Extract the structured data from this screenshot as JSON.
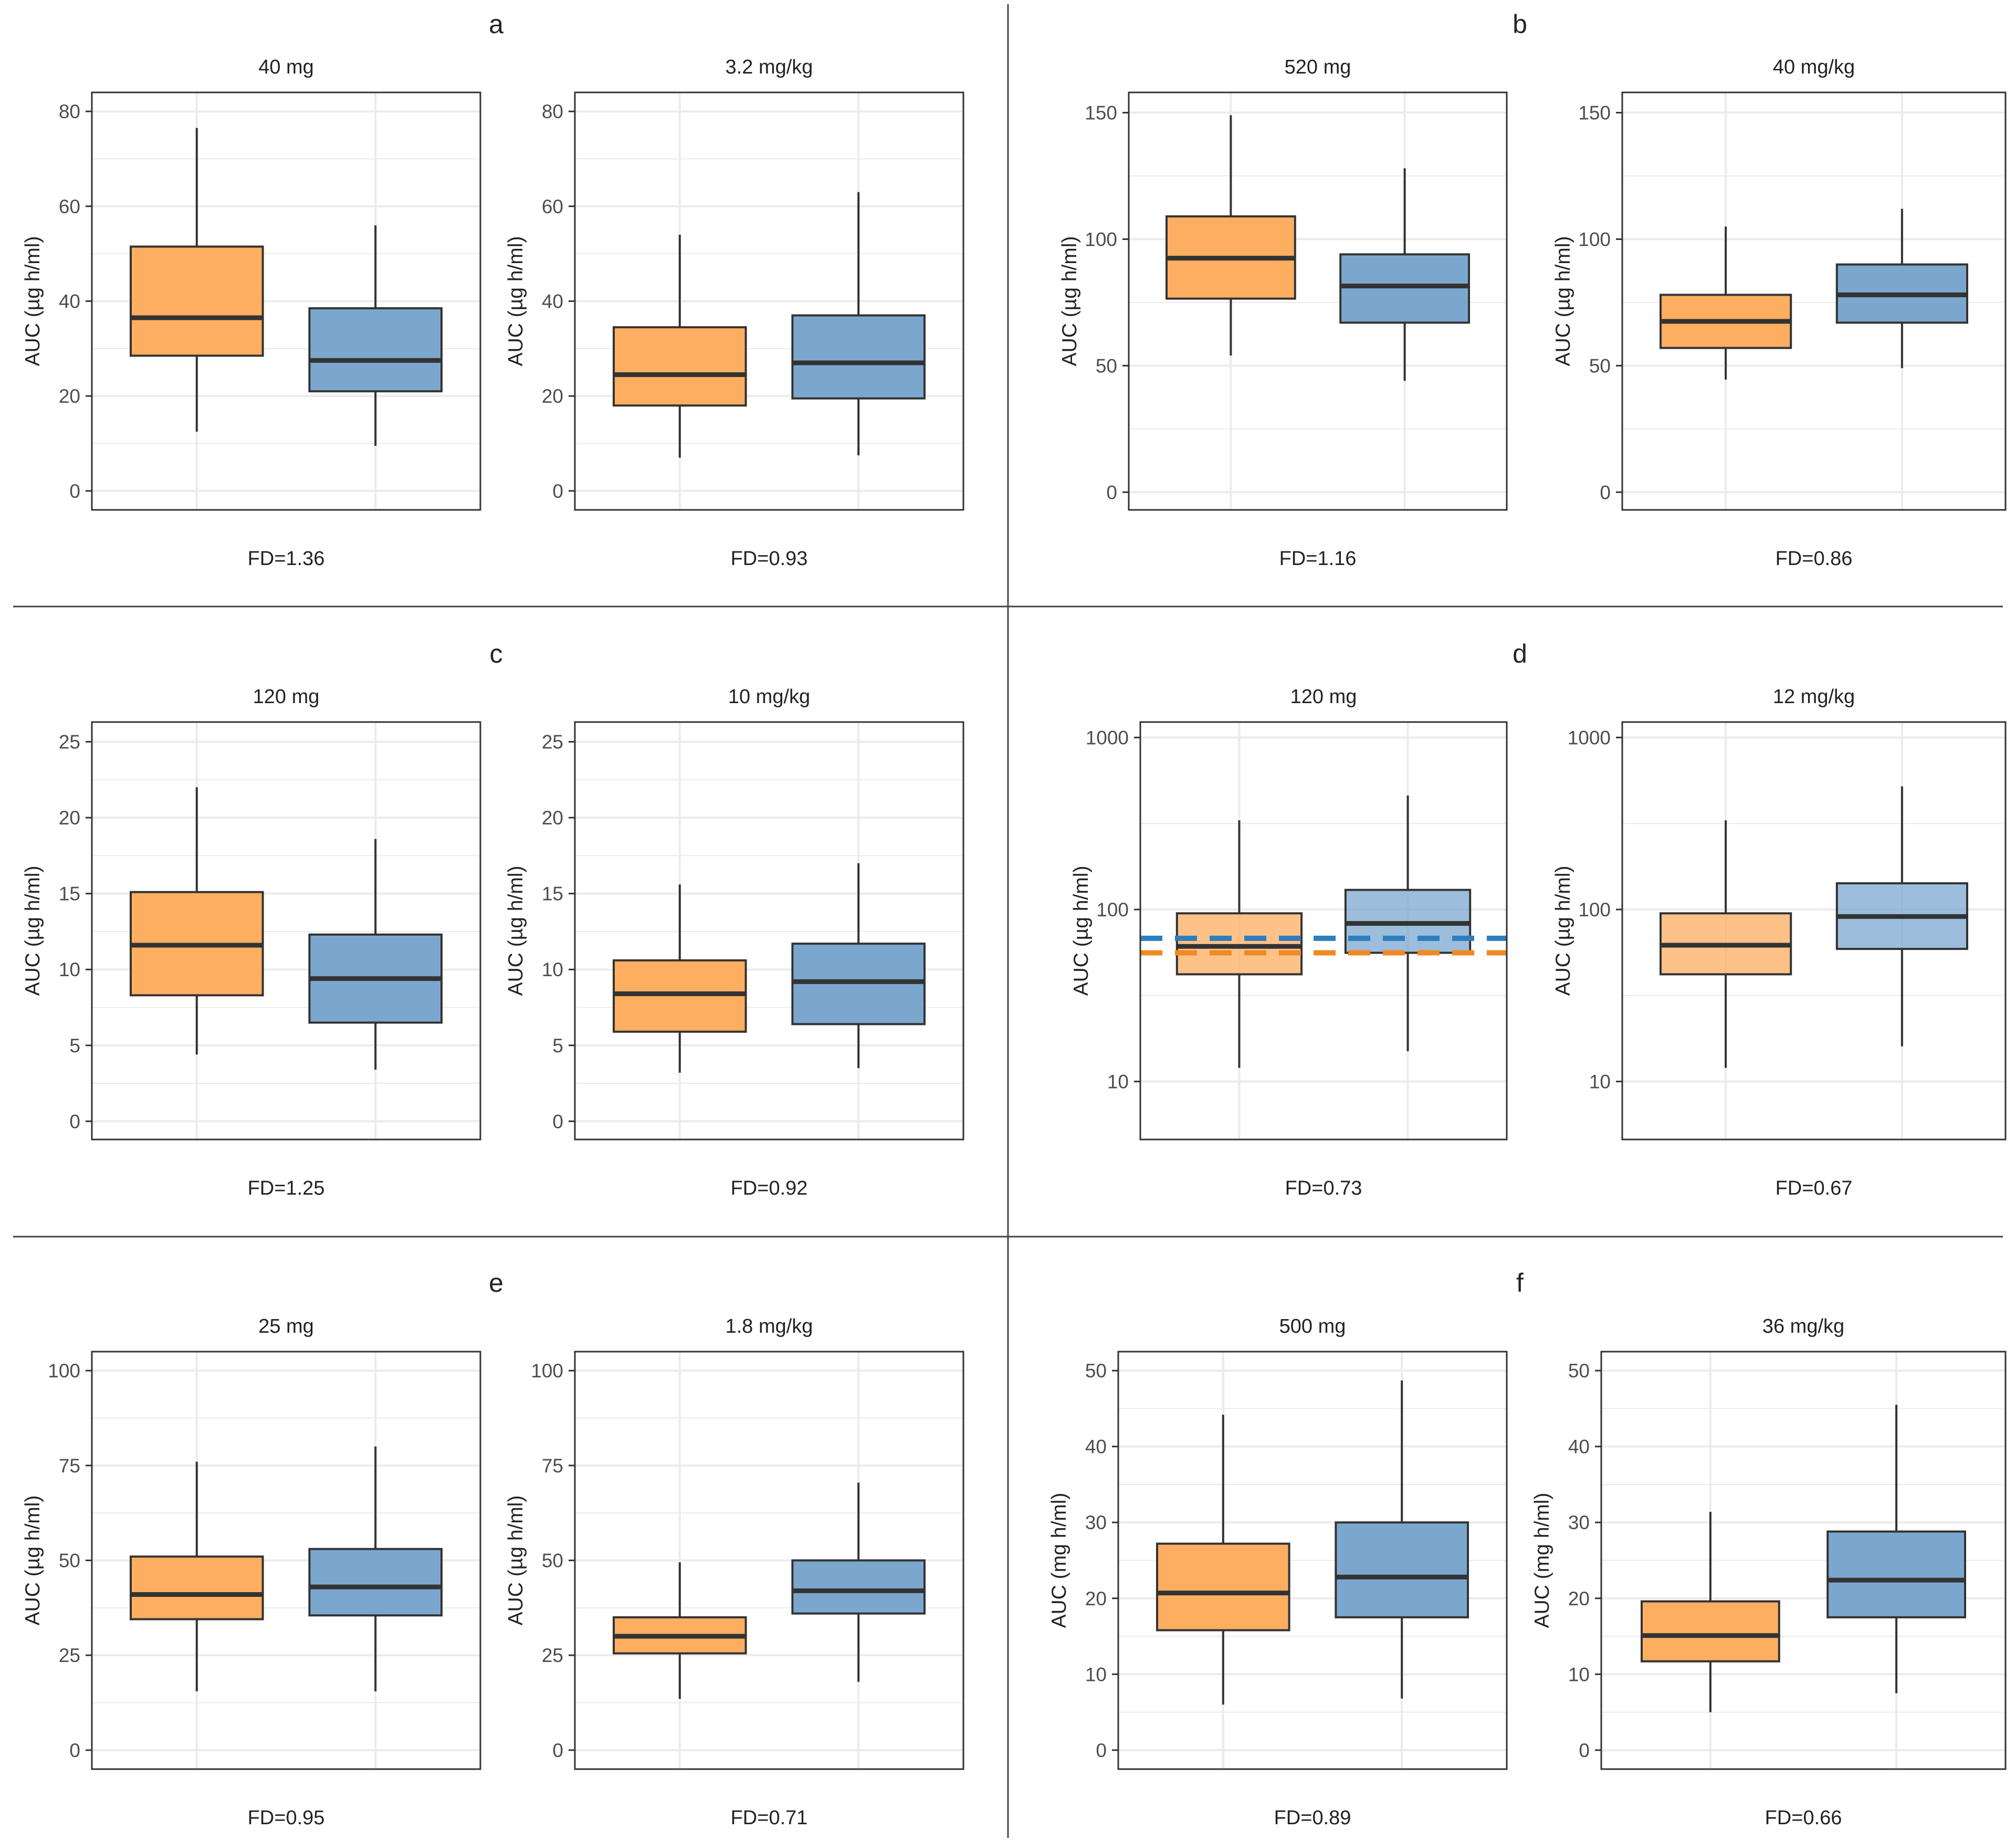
{
  "colors": {
    "group1_fill": "#fdae61",
    "group2_fill": "#7ba7cf",
    "group1_line": "#f08a24",
    "group2_line": "#2e7dbd",
    "box_stroke": "#333333",
    "grid": "#ebebeb",
    "panel_border": "#333333",
    "divider": "#444444",
    "text": "#222222",
    "tick_text": "#4d4d4d"
  },
  "chart_data": [
    {
      "type": "box",
      "panel": "a",
      "title": "40 mg",
      "ylabel": "AUC (µg h/ml)",
      "scale": "linear",
      "ylim": [
        -4,
        84
      ],
      "yticks": [
        0,
        20,
        40,
        60,
        80
      ],
      "footer": "FD=1.36",
      "boxes": [
        {
          "min": 12.5,
          "q1": 28.5,
          "median": 36.5,
          "q3": 51.5,
          "max": 76.5
        },
        {
          "min": 9.5,
          "q1": 21,
          "median": 27.5,
          "q3": 38.5,
          "max": 56
        }
      ]
    },
    {
      "type": "box",
      "panel": "a",
      "title": "3.2 mg/kg",
      "ylabel": "AUC (µg h/ml)",
      "scale": "linear",
      "ylim": [
        -4,
        84
      ],
      "yticks": [
        0,
        20,
        40,
        60,
        80
      ],
      "footer": "FD=0.93",
      "boxes": [
        {
          "min": 7,
          "q1": 18,
          "median": 24.5,
          "q3": 34.5,
          "max": 54
        },
        {
          "min": 7.5,
          "q1": 19.5,
          "median": 27,
          "q3": 37,
          "max": 63
        }
      ]
    },
    {
      "type": "box",
      "panel": "b",
      "title": "520 mg",
      "ylabel": "AUC (µg h/ml)",
      "scale": "linear",
      "ylim": [
        -7,
        158
      ],
      "yticks": [
        0,
        50,
        100,
        150
      ],
      "footer": "FD=1.16",
      "boxes": [
        {
          "min": 54,
          "q1": 76.5,
          "median": 92.5,
          "q3": 109,
          "max": 149
        },
        {
          "min": 44,
          "q1": 67,
          "median": 81.5,
          "q3": 94,
          "max": 128
        }
      ]
    },
    {
      "type": "box",
      "panel": "b",
      "title": "40 mg/kg",
      "ylabel": "AUC (µg h/ml)",
      "scale": "linear",
      "ylim": [
        -7,
        158
      ],
      "yticks": [
        0,
        50,
        100,
        150
      ],
      "footer": "FD=0.86",
      "boxes": [
        {
          "min": 44.5,
          "q1": 57,
          "median": 67.5,
          "q3": 78,
          "max": 105
        },
        {
          "min": 49,
          "q1": 67,
          "median": 78,
          "q3": 90,
          "max": 112
        }
      ]
    },
    {
      "type": "box",
      "panel": "c",
      "title": "120 mg",
      "ylabel": "AUC (µg h/ml)",
      "scale": "linear",
      "ylim": [
        -1.2,
        26.3
      ],
      "yticks": [
        0,
        5,
        10,
        15,
        20,
        25
      ],
      "footer": "FD=1.25",
      "boxes": [
        {
          "min": 4.4,
          "q1": 8.3,
          "median": 11.6,
          "q3": 15.1,
          "max": 22
        },
        {
          "min": 3.4,
          "q1": 6.5,
          "median": 9.4,
          "q3": 12.3,
          "max": 18.6
        }
      ]
    },
    {
      "type": "box",
      "panel": "c",
      "title": "10 mg/kg",
      "ylabel": "AUC (µg h/ml)",
      "scale": "linear",
      "ylim": [
        -1.2,
        26.3
      ],
      "yticks": [
        0,
        5,
        10,
        15,
        20,
        25
      ],
      "footer": "FD=0.92",
      "boxes": [
        {
          "min": 3.2,
          "q1": 5.9,
          "median": 8.4,
          "q3": 10.6,
          "max": 15.6
        },
        {
          "min": 3.5,
          "q1": 6.4,
          "median": 9.2,
          "q3": 11.7,
          "max": 17
        }
      ]
    },
    {
      "type": "box",
      "panel": "d",
      "title": "120 mg",
      "ylabel": "AUC (µg h/ml)",
      "scale": "log",
      "ylim": [
        4.6,
        1230
      ],
      "yticks": [
        10,
        100,
        1000
      ],
      "footer": "FD=0.73",
      "alpha": 0.75,
      "hlines": [
        {
          "y": 68,
          "color_key": "group2_line"
        },
        {
          "y": 56,
          "color_key": "group1_line"
        }
      ],
      "boxes": [
        {
          "min": 12,
          "q1": 42,
          "median": 61,
          "q3": 95,
          "max": 330
        },
        {
          "min": 15,
          "q1": 56,
          "median": 83,
          "q3": 130,
          "max": 460
        }
      ]
    },
    {
      "type": "box",
      "panel": "d",
      "title": "12 mg/kg",
      "ylabel": "AUC (µg h/ml)",
      "scale": "log",
      "ylim": [
        4.6,
        1230
      ],
      "yticks": [
        10,
        100,
        1000
      ],
      "footer": "FD=0.67",
      "alpha": 0.75,
      "boxes": [
        {
          "min": 12,
          "q1": 42,
          "median": 62,
          "q3": 95,
          "max": 330
        },
        {
          "min": 16,
          "q1": 59,
          "median": 91,
          "q3": 142,
          "max": 520
        }
      ]
    },
    {
      "type": "box",
      "panel": "e",
      "title": "25 mg",
      "ylabel": "AUC (µg h/ml)",
      "scale": "linear",
      "ylim": [
        -5,
        105
      ],
      "yticks": [
        0,
        25,
        50,
        75,
        100
      ],
      "footer": "FD=0.95",
      "boxes": [
        {
          "min": 15.5,
          "q1": 34.5,
          "median": 41,
          "q3": 51,
          "max": 76
        },
        {
          "min": 15.5,
          "q1": 35.5,
          "median": 43,
          "q3": 53,
          "max": 80
        }
      ]
    },
    {
      "type": "box",
      "panel": "e",
      "title": "1.8 mg/kg",
      "ylabel": "AUC (µg h/ml)",
      "scale": "linear",
      "ylim": [
        -5,
        105
      ],
      "yticks": [
        0,
        25,
        50,
        75,
        100
      ],
      "footer": "FD=0.71",
      "boxes": [
        {
          "min": 13.5,
          "q1": 25.5,
          "median": 30,
          "q3": 35,
          "max": 49.5
        },
        {
          "min": 18,
          "q1": 36,
          "median": 42,
          "q3": 50,
          "max": 70.5
        }
      ]
    },
    {
      "type": "box",
      "panel": "f",
      "title": "500 mg",
      "ylabel": "AUC (mg h/ml)",
      "scale": "linear",
      "ylim": [
        -2.5,
        52.5
      ],
      "yticks": [
        0,
        10,
        20,
        30,
        40,
        50
      ],
      "footer": "FD=0.89",
      "boxes": [
        {
          "min": 6,
          "q1": 15.8,
          "median": 20.7,
          "q3": 27.2,
          "max": 44.2
        },
        {
          "min": 6.8,
          "q1": 17.5,
          "median": 22.8,
          "q3": 30,
          "max": 48.7
        }
      ]
    },
    {
      "type": "box",
      "panel": "f",
      "title": "36 mg/kg",
      "ylabel": "AUC (mg h/ml)",
      "scale": "linear",
      "ylim": [
        -2.5,
        52.5
      ],
      "yticks": [
        0,
        10,
        20,
        30,
        40,
        50
      ],
      "footer": "FD=0.66",
      "boxes": [
        {
          "min": 5,
          "q1": 11.7,
          "median": 15.1,
          "q3": 19.6,
          "max": 31.4
        },
        {
          "min": 7.5,
          "q1": 17.5,
          "median": 22.4,
          "q3": 28.8,
          "max": 45.5
        }
      ]
    }
  ],
  "panel_letters": [
    "a",
    "b",
    "c",
    "d",
    "e",
    "f"
  ]
}
